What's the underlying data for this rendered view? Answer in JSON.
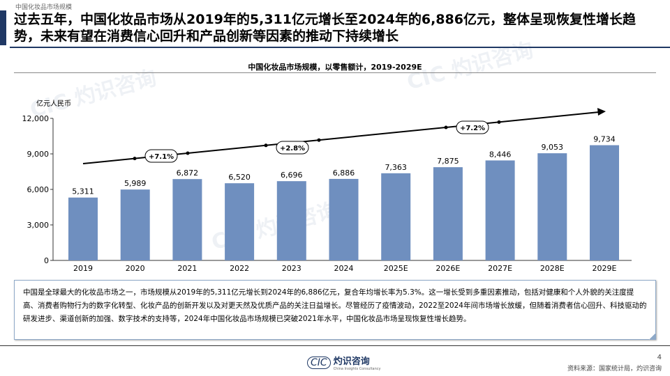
{
  "breadcrumb": "中国化妆品市场规模",
  "headline": "过去五年，中国化妆品市场从2019年的5,311亿元增长至2024年的6,886亿元，整体呈现恢复性增长趋势，未来有望在消费信心回升和产品创新等因素的推动下持续增长",
  "watermark": "CIC 灼识咨询 China Insights Consultancy",
  "chart_data": {
    "type": "bar",
    "title": "中国化妆品市场规模，以零售额计，2019-2029E",
    "ylabel": "亿元人民币",
    "ylim": [
      0,
      12000
    ],
    "yticks": [
      "0",
      "3,000",
      "6,000",
      "9,000",
      "12,000"
    ],
    "categories": [
      "2019",
      "2020",
      "2021",
      "2022",
      "2023",
      "2024",
      "2025E",
      "2026E",
      "2027E",
      "2028E",
      "2029E"
    ],
    "values": [
      5311,
      5989,
      6872,
      6520,
      6696,
      6886,
      7363,
      7875,
      8446,
      9053,
      9734
    ],
    "value_labels": [
      "5,311",
      "5,989",
      "6,872",
      "6,520",
      "6,696",
      "6,886",
      "7,363",
      "7,875",
      "8,446",
      "9,053",
      "9,734"
    ],
    "cagr_labels": [
      "+7.1%",
      "+2.8%",
      "+7.2%"
    ],
    "bar_color": "#6f8fbf",
    "grid": false
  },
  "note": "中国是全球最大的化妆品市场之一，市场规模从2019年的5,311亿元增长到2024年的6,886亿元，复合年均增长率为5.3%。这一增长受到多重因素推动，包括对健康和个人外貌的关注度提高、消费者购物行为的数字化转型、化妆产品的创新开发以及对更天然及优质产品的关注日益增长。尽管经历了疫情波动，2022至2024年间市场增长放缓，但随着消费者信心回升、科技驱动的研发进步、渠道创新的加强、数字技术的支持等，2024年中国化妆品市场规模已突破2021年水平，中国化妆品市场呈现恢复性增长趋势。",
  "footer": {
    "logo_text": "CIC 灼识咨询",
    "page": "4",
    "source": "资料来源：国家统计局，灼识咨询"
  }
}
